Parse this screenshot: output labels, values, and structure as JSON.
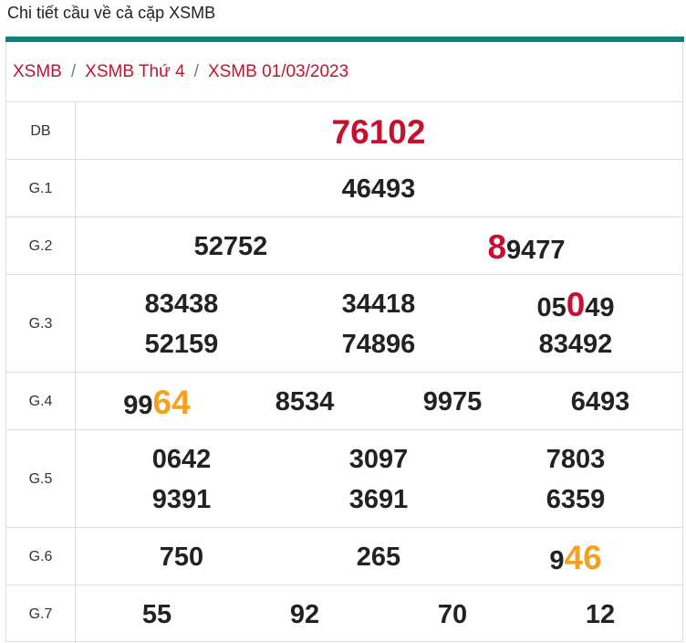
{
  "page_title": "Chi tiết cầu về cả cặp XSMB",
  "breadcrumb": [
    "XSMB",
    "XSMB Thứ 4",
    "XSMB 01/03/2023"
  ],
  "rows": {
    "db": {
      "label": "DB",
      "values": [
        "76102"
      ]
    },
    "g1": {
      "label": "G.1",
      "values": [
        "46493"
      ]
    },
    "g2": {
      "label": "G.2",
      "values": [
        "52752",
        "8",
        "9477"
      ]
    },
    "g3": {
      "label": "G.3",
      "values": [
        "83438",
        "34418",
        "05",
        "0",
        "49",
        "52159",
        "74896",
        "83492"
      ]
    },
    "g4": {
      "label": "G.4",
      "values": [
        "99",
        "64",
        "8534",
        "9975",
        "6493"
      ]
    },
    "g5": {
      "label": "G.5",
      "values": [
        "0642",
        "3097",
        "7803",
        "9391",
        "3691",
        "6359"
      ]
    },
    "g6": {
      "label": "G.6",
      "values": [
        "750",
        "265",
        "9",
        "46"
      ]
    },
    "g7": {
      "label": "G.7",
      "values": [
        "55",
        "92",
        "70",
        "12"
      ]
    }
  },
  "colors": {
    "accent_bar": "#137f7c",
    "highlight_red": "#c8102e",
    "highlight_orange": "#f7a01e"
  }
}
